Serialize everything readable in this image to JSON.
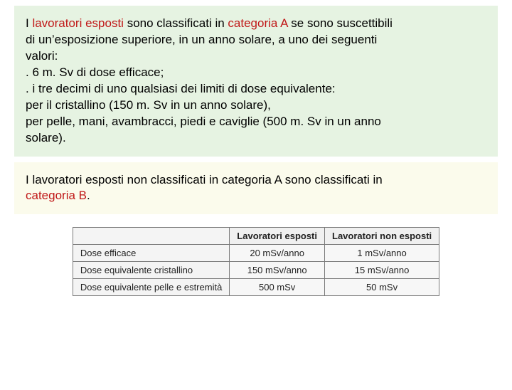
{
  "blockA": {
    "background": "#e6f3e2",
    "highlight_color": "#c01818",
    "pre": "I ",
    "hl1": "lavoratori esposti",
    "mid1": " sono classificati in ",
    "hl2": "categoria A",
    "post1": " se sono suscettibili",
    "line2": "di un’esposizione superiore, in un anno solare, a uno dei seguenti",
    "line3": "valori:",
    "line4": ". 6 m. Sv di dose efficace;",
    "line5": ". i tre decimi di uno qualsiasi dei limiti di dose equivalente:",
    "line6": "per il cristallino (150 m. Sv in un anno solare),",
    "line7": "per pelle, mani, avambracci, piedi e caviglie (500 m. Sv in un anno",
    "line8": "solare)."
  },
  "blockB": {
    "background": "#fbfbec",
    "pre": "I lavoratori esposti non classificati in categoria A sono classificati in",
    "hl": "categoria B",
    "post": "."
  },
  "table": {
    "border_color": "#7a7a7a",
    "background": "#f7f7f7",
    "fontsize": 13,
    "columns": [
      "",
      "Lavoratori esposti",
      "Lavoratori non esposti"
    ],
    "rows": [
      {
        "label": "Dose efficace",
        "c1": "20 mSv/anno",
        "c2": "1 mSv/anno"
      },
      {
        "label": "Dose equivalente cristallino",
        "c1": "150 mSv/anno",
        "c2": "15 mSv/anno"
      },
      {
        "label": "Dose equivalente pelle e estremità",
        "c1": "500 mSv",
        "c2": "50 mSv"
      }
    ]
  }
}
